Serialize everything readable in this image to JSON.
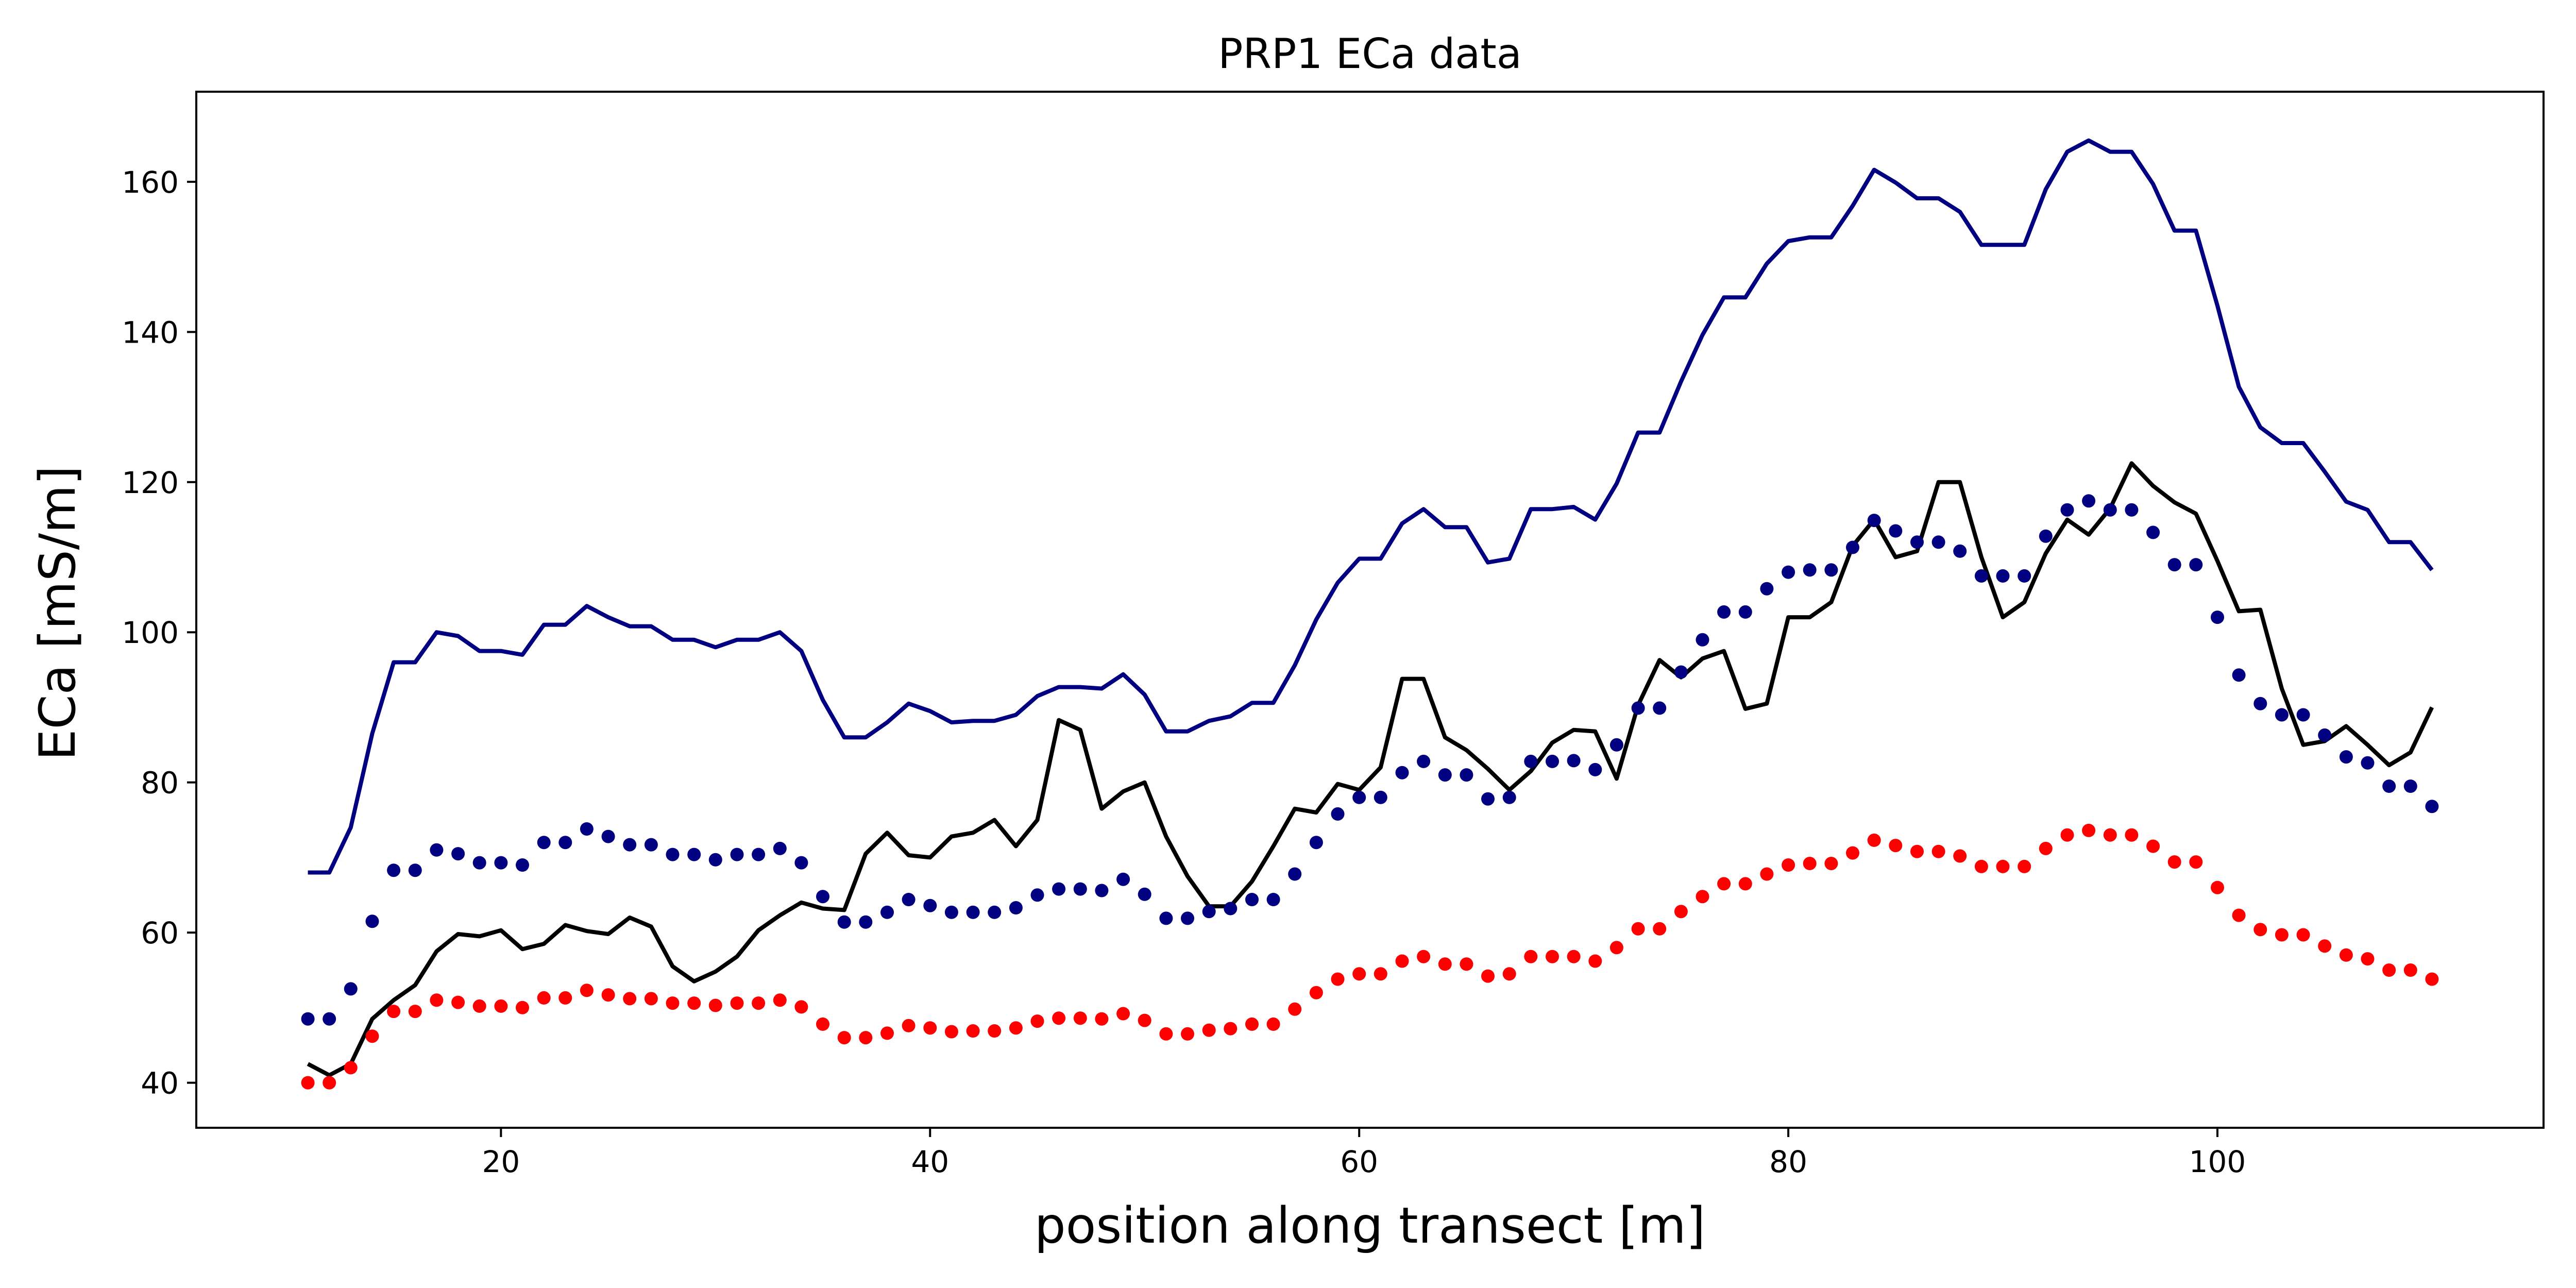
{
  "chart_data": {
    "type": "line",
    "title": "PRP1 ECa data",
    "xlabel": "position along transect [m]",
    "ylabel": "ECa [mS/m]",
    "xlim": [
      5.8,
      115.2
    ],
    "ylim": [
      34,
      172
    ],
    "xticks": [
      20,
      40,
      60,
      80,
      100
    ],
    "yticks": [
      40,
      60,
      80,
      100,
      120,
      140,
      160
    ],
    "grid": false,
    "legend": "none",
    "x": [
      11,
      12,
      13,
      14,
      15,
      16,
      17,
      18,
      19,
      20,
      21,
      22,
      23,
      24,
      25,
      26,
      27,
      28,
      29,
      30,
      31,
      32,
      33,
      34,
      35,
      36,
      37,
      38,
      39,
      40,
      41,
      42,
      43,
      44,
      45,
      46,
      47,
      48,
      49,
      50,
      51,
      52,
      53,
      54,
      55,
      56,
      57,
      58,
      59,
      60,
      61,
      62,
      63,
      64,
      65,
      66,
      67,
      68,
      69,
      70,
      71,
      72,
      73,
      74,
      75,
      76,
      77,
      78,
      79,
      80,
      81,
      82,
      83,
      84,
      85,
      86,
      87,
      88,
      89,
      90,
      91,
      92,
      93,
      94,
      95,
      96,
      97,
      98,
      99,
      100,
      101,
      102,
      103,
      104,
      105,
      106,
      107,
      108,
      109,
      110
    ],
    "series": [
      {
        "style": "line",
        "color": "#000080",
        "values": [
          68,
          68,
          74,
          86.5,
          96,
          96,
          100,
          99.5,
          97.5,
          97.5,
          97,
          101,
          101,
          103.5,
          102,
          100.8,
          100.8,
          99,
          99,
          98,
          99,
          99,
          100,
          97.5,
          91,
          86,
          86,
          88,
          90.5,
          89.5,
          88,
          88.2,
          88.2,
          89,
          91.5,
          92.7,
          92.7,
          92.5,
          94.4,
          91.7,
          86.8,
          86.8,
          88.2,
          88.8,
          90.6,
          90.6,
          95.6,
          101.7,
          106.6,
          109.8,
          109.8,
          114.5,
          116.4,
          114,
          114,
          109.3,
          109.8,
          116.4,
          116.4,
          116.7,
          115,
          119.8,
          126.6,
          126.6,
          133.4,
          139.6,
          144.6,
          144.6,
          149.1,
          152.1,
          152.6,
          152.6,
          156.8,
          161.6,
          159.9,
          157.8,
          157.8,
          156,
          151.6,
          151.6,
          151.6,
          159,
          164,
          165.5,
          164,
          164,
          159.7,
          153.5,
          153.5,
          143.5,
          132.7,
          127.3,
          125.2,
          125.2,
          121.4,
          117.4,
          116.3,
          112,
          112,
          108.3
        ]
      },
      {
        "style": "line",
        "color": "#000000",
        "values": [
          42.5,
          41,
          42.5,
          48.5,
          51,
          53,
          57.5,
          59.8,
          59.5,
          60.3,
          57.8,
          58.5,
          61,
          60.2,
          59.8,
          62,
          60.8,
          55.5,
          53.5,
          54.8,
          56.8,
          60.3,
          62.3,
          64,
          63.2,
          63,
          70.5,
          73.3,
          70.3,
          70,
          72.8,
          73.3,
          75,
          71.5,
          75,
          88.3,
          87,
          76.5,
          78.8,
          80,
          72.8,
          67.5,
          63.5,
          63.5,
          66.8,
          71.5,
          76.5,
          76,
          79.8,
          79,
          82,
          93.8,
          93.8,
          86,
          84.3,
          81.8,
          79,
          81.5,
          85.3,
          87,
          86.8,
          80.5,
          90.3,
          96.3,
          94,
          96.5,
          97.5,
          89.8,
          90.5,
          102,
          102,
          104,
          111.5,
          115,
          110,
          110.8,
          120,
          120,
          110,
          102,
          104,
          110.5,
          115,
          113,
          116.5,
          122.5,
          119.5,
          117.3,
          115.8,
          109.5,
          102.8,
          103,
          92.5,
          85,
          85.5,
          87.5,
          85,
          82.3,
          84,
          90
        ]
      },
      {
        "style": "dots",
        "color": "#000080",
        "values": [
          48.5,
          48.5,
          52.5,
          61.5,
          68.3,
          68.3,
          71,
          70.5,
          69.3,
          69.3,
          69,
          72,
          72,
          73.8,
          72.8,
          71.7,
          71.7,
          70.4,
          70.4,
          69.7,
          70.4,
          70.4,
          71.2,
          69.3,
          64.8,
          61.4,
          61.4,
          62.7,
          64.4,
          63.6,
          62.7,
          62.7,
          62.7,
          63.3,
          65,
          65.8,
          65.8,
          65.6,
          67.1,
          65.1,
          61.9,
          61.9,
          62.8,
          63.2,
          64.4,
          64.4,
          67.8,
          72,
          75.8,
          78,
          78,
          81.3,
          82.8,
          81,
          81,
          77.8,
          78,
          82.8,
          82.8,
          82.9,
          81.7,
          85,
          89.9,
          89.9,
          94.7,
          99,
          102.7,
          102.7,
          105.8,
          108,
          108.3,
          108.3,
          111.3,
          114.9,
          113.5,
          112,
          112,
          110.8,
          107.5,
          107.5,
          107.5,
          112.8,
          116.3,
          117.5,
          116.3,
          116.3,
          113.3,
          109,
          109,
          102,
          94.3,
          90.5,
          89,
          89,
          86.3,
          83.4,
          82.6,
          79.5,
          79.5,
          76.8
        ]
      },
      {
        "style": "dots",
        "color": "#ff0000",
        "values": [
          40,
          40,
          42,
          46.2,
          49.5,
          49.5,
          51,
          50.7,
          50.2,
          50.2,
          50,
          51.3,
          51.3,
          52.3,
          51.7,
          51.2,
          51.2,
          50.6,
          50.6,
          50.3,
          50.6,
          50.6,
          51,
          50.1,
          47.8,
          46,
          46,
          46.6,
          47.6,
          47.3,
          46.8,
          46.9,
          46.9,
          47.3,
          48.2,
          48.6,
          48.6,
          48.5,
          49.2,
          48.3,
          46.5,
          46.5,
          47,
          47.2,
          47.8,
          47.8,
          49.8,
          52,
          53.8,
          54.5,
          54.5,
          56.2,
          56.8,
          55.8,
          55.8,
          54.2,
          54.5,
          56.8,
          56.8,
          56.8,
          56.2,
          58,
          60.5,
          60.5,
          62.8,
          64.8,
          66.5,
          66.5,
          67.8,
          69,
          69.2,
          69.2,
          70.6,
          72.3,
          71.6,
          70.8,
          70.8,
          70.2,
          68.8,
          68.8,
          68.8,
          71.2,
          73,
          73.6,
          73,
          73,
          71.5,
          69.4,
          69.4,
          66,
          62.3,
          60.4,
          59.7,
          59.7,
          58.2,
          57,
          56.5,
          55,
          55,
          53.8
        ]
      }
    ]
  }
}
